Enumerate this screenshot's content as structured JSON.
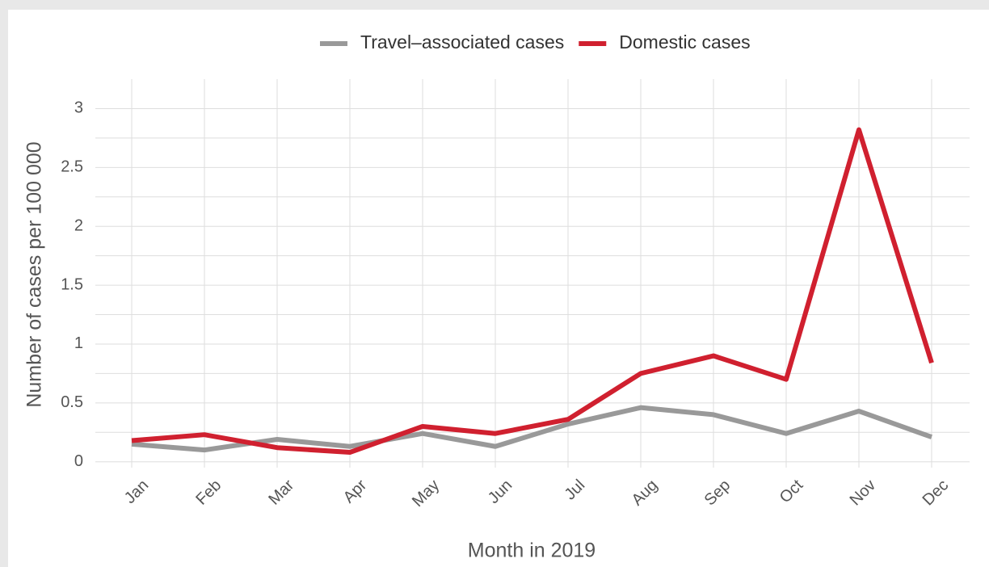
{
  "chart_data": {
    "type": "line",
    "x_label": "Month in 2019",
    "y_label": "Number of cases per 100 000",
    "categories": [
      "Jan",
      "Feb",
      "Mar",
      "Apr",
      "May",
      "Jun",
      "Jul",
      "Aug",
      "Sep",
      "Oct",
      "Nov",
      "Dec"
    ],
    "series": [
      {
        "name": "Travel–associated cases",
        "color": "#999999",
        "values": [
          0.15,
          0.1,
          0.19,
          0.13,
          0.24,
          0.13,
          0.32,
          0.46,
          0.4,
          0.24,
          0.43,
          0.21
        ]
      },
      {
        "name": "Domestic cases",
        "color": "#d0202f",
        "values": [
          0.18,
          0.23,
          0.12,
          0.08,
          0.3,
          0.24,
          0.36,
          0.75,
          0.9,
          0.7,
          2.82,
          0.84
        ]
      }
    ],
    "ylim": [
      -0.05,
      3.25
    ],
    "yticks": [
      0,
      0.5,
      1,
      1.5,
      2,
      2.5,
      3
    ],
    "y_minor_ticks": [
      0.25,
      0.75,
      1.25,
      1.75,
      2.25,
      2.75
    ],
    "grid": true,
    "legend": "top"
  }
}
